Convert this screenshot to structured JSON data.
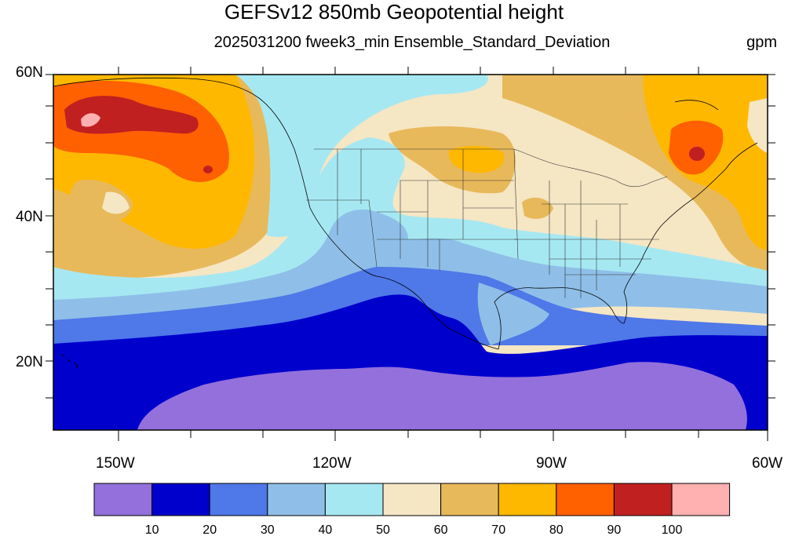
{
  "title": "GEFSv12 850mb Geopotential height",
  "subtitle": "2025031200 fweek3_min Ensemble_Standard_Deviation",
  "units": "gpm",
  "lat_labels": [
    "60N",
    "40N",
    "20N"
  ],
  "lon_labels": [
    "150W",
    "120W",
    "90W",
    "60W"
  ],
  "colorbar": {
    "colors": [
      "#9370db",
      "#0000cd",
      "#4f78e8",
      "#8fbfe8",
      "#a6e8f2",
      "#f5e6c4",
      "#e8b95a",
      "#ffb800",
      "#ff6000",
      "#c02020",
      "#ffb0b0"
    ],
    "labels": [
      "10",
      "20",
      "30",
      "40",
      "50",
      "60",
      "70",
      "80",
      "90",
      "100"
    ]
  }
}
